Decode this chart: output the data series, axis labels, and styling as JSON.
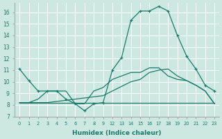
{
  "xlabel": "Humidex (Indice chaleur)",
  "background_color": "#cce8e0",
  "grid_color": "#ffffff",
  "line_color": "#1a7a6e",
  "xlim": [
    -0.5,
    23.5
  ],
  "ylim": [
    7,
    16.8
  ],
  "xtick_positions": [
    0,
    1,
    2,
    3,
    4,
    5,
    6,
    7,
    8,
    9,
    12,
    13,
    14,
    15,
    16,
    17,
    18,
    19,
    20,
    21,
    22,
    23
  ],
  "xtick_labels": [
    "0",
    "1",
    "2",
    "3",
    "4",
    "5",
    "6",
    "7",
    "8",
    "9",
    "12",
    "13",
    "14",
    "15",
    "16",
    "17",
    "18",
    "19",
    "20",
    "21",
    "22",
    "23"
  ],
  "yticks": [
    7,
    8,
    9,
    10,
    11,
    12,
    13,
    14,
    15,
    16
  ],
  "line1_x": [
    0,
    1,
    2,
    3,
    4,
    5,
    6,
    7,
    8,
    9,
    12,
    13,
    14,
    15,
    16,
    17,
    18,
    19,
    20,
    21,
    22,
    23
  ],
  "line1_y": [
    11.1,
    10.1,
    9.2,
    9.2,
    9.2,
    8.5,
    8.1,
    7.5,
    8.1,
    8.2,
    11.0,
    12.1,
    15.3,
    16.1,
    16.1,
    16.5,
    16.1,
    14.0,
    12.2,
    11.1,
    9.7,
    9.2
  ],
  "line2_x": [
    0,
    1,
    2,
    3,
    4,
    5,
    6,
    7,
    8,
    9,
    12,
    13,
    14,
    15,
    16,
    17,
    18,
    19,
    20,
    21,
    22,
    23
  ],
  "line2_y": [
    8.2,
    8.2,
    8.2,
    8.2,
    8.2,
    8.2,
    8.2,
    8.2,
    8.2,
    8.2,
    8.2,
    8.2,
    8.2,
    8.2,
    8.2,
    8.2,
    8.2,
    8.2,
    8.2,
    8.2,
    8.2,
    8.2
  ],
  "line3_x": [
    0,
    1,
    2,
    3,
    4,
    5,
    6,
    7,
    8,
    9,
    12,
    13,
    14,
    15,
    16,
    17,
    18,
    19,
    20,
    21,
    22,
    23
  ],
  "line3_y": [
    8.2,
    8.2,
    8.5,
    9.2,
    9.2,
    9.2,
    8.1,
    8.1,
    9.2,
    9.5,
    10.2,
    10.5,
    10.8,
    10.8,
    11.2,
    11.2,
    10.5,
    10.2,
    10.1,
    9.7,
    9.2,
    8.1
  ],
  "line4_x": [
    0,
    3,
    9,
    12,
    14,
    15,
    16,
    17,
    18,
    19,
    20,
    21,
    22,
    23
  ],
  "line4_y": [
    8.2,
    8.2,
    8.8,
    9.2,
    10.0,
    10.2,
    10.8,
    11.0,
    11.1,
    10.5,
    10.1,
    9.7,
    9.2,
    8.1
  ],
  "figwidth": 3.2,
  "figheight": 2.0,
  "dpi": 100
}
